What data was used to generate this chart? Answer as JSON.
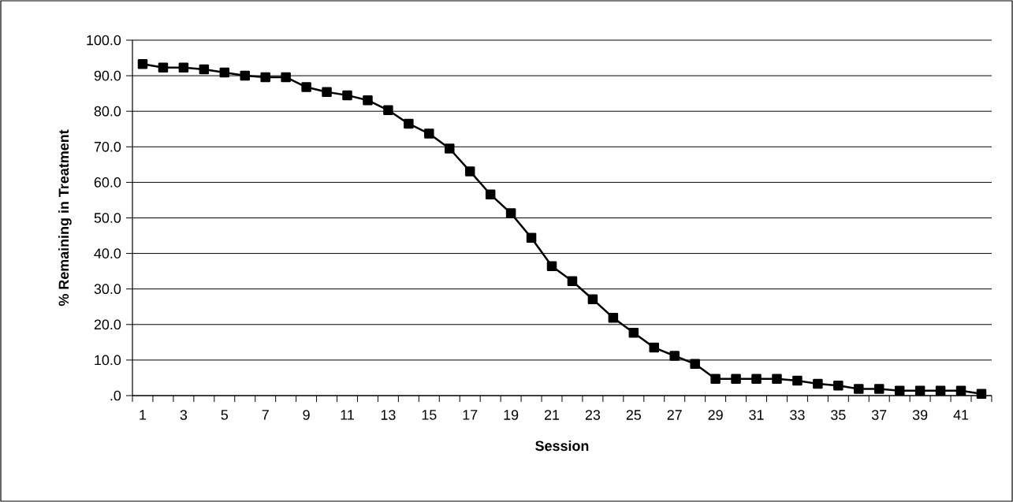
{
  "chart_data": {
    "type": "line",
    "xlabel": "Session",
    "ylabel": "% Remaining in Treatment",
    "categories": [
      "1",
      null,
      "3",
      null,
      "5",
      null,
      "7",
      null,
      "9",
      null,
      "11",
      null,
      "13",
      null,
      "15",
      null,
      "17",
      null,
      "19",
      null,
      "21",
      null,
      "23",
      null,
      "25",
      null,
      "27",
      null,
      "29",
      null,
      "31",
      null,
      "33",
      null,
      "35",
      null,
      "37",
      null,
      "39",
      null,
      "41",
      null
    ],
    "values": [
      93.3,
      92.3,
      92.3,
      91.8,
      90.9,
      90.0,
      89.6,
      89.6,
      86.8,
      85.4,
      84.5,
      83.1,
      80.3,
      76.5,
      73.7,
      69.5,
      63.1,
      56.6,
      51.3,
      44.4,
      36.4,
      32.2,
      27.1,
      21.9,
      17.7,
      13.5,
      11.2,
      8.9,
      4.7,
      4.7,
      4.7,
      4.7,
      4.2,
      3.3,
      2.8,
      1.9,
      1.9,
      1.4,
      1.4,
      1.4,
      1.4,
      0.5
    ],
    "color": "#000000",
    "marker": "square",
    "line_style": "solid",
    "grid": "y",
    "ylim": [
      0,
      100
    ],
    "yticks": [
      {
        "value": 0,
        "label": ".0"
      },
      {
        "value": 10,
        "label": "10.0"
      },
      {
        "value": 20,
        "label": "20.0"
      },
      {
        "value": 30,
        "label": "30.0"
      },
      {
        "value": 40,
        "label": "40.0"
      },
      {
        "value": 50,
        "label": "50.0"
      },
      {
        "value": 60,
        "label": "60.0"
      },
      {
        "value": 70,
        "label": "70.0"
      },
      {
        "value": 80,
        "label": "80.0"
      },
      {
        "value": 90,
        "label": "90.0"
      },
      {
        "value": 100,
        "label": "100.0"
      }
    ]
  }
}
